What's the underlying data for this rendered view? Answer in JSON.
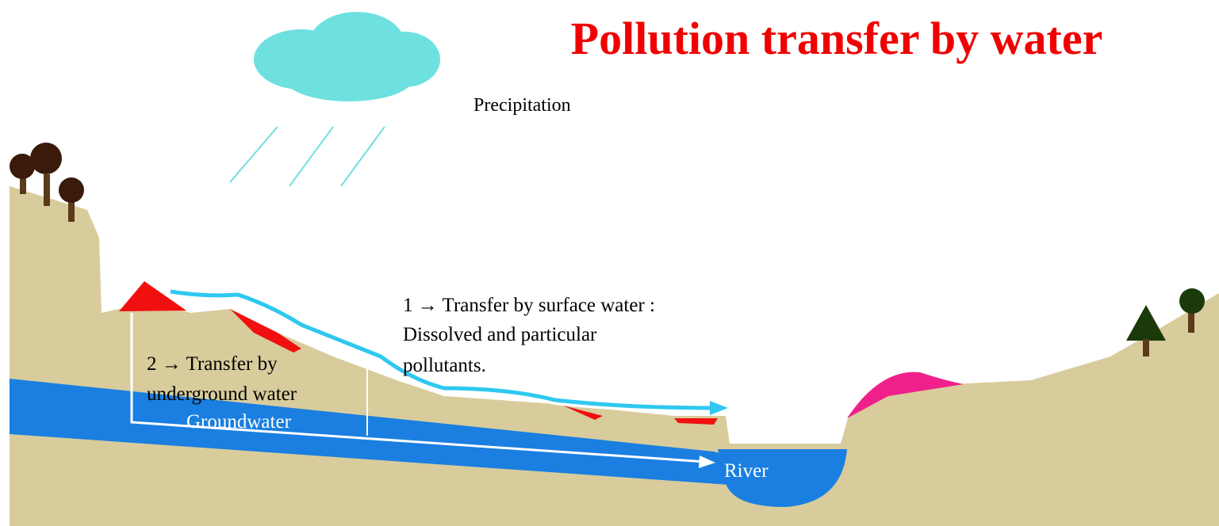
{
  "title": "Pollution transfer by water",
  "labels": {
    "precipitation": "Precipitation",
    "surface": [
      "1 → Transfer by surface water :",
      "Dissolved and particular",
      "pollutants."
    ],
    "underground": [
      "2 → Transfer by",
      "underground water"
    ],
    "groundwater": "Groundwater",
    "river": "River"
  }
}
